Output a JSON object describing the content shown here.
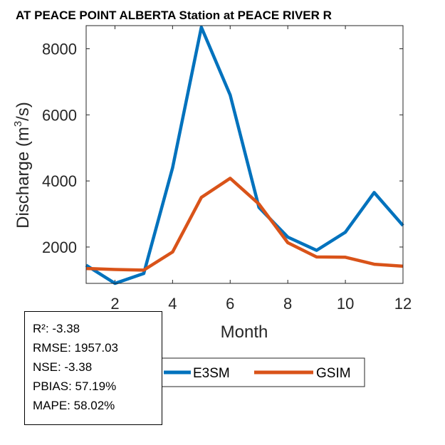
{
  "chart_data": {
    "type": "line",
    "title": "AT PEACE POINT ALBERTA  Station at  PEACE RIVER  R",
    "xlabel": "Month",
    "ylabel_prefix": "Discharge (m",
    "ylabel_sup": "3",
    "ylabel_suffix": "/s)",
    "xlim": [
      1,
      12
    ],
    "ylim": [
      900,
      8700
    ],
    "x": [
      1,
      2,
      3,
      4,
      5,
      6,
      7,
      8,
      9,
      10,
      11,
      12
    ],
    "xticks": [
      2,
      4,
      6,
      8,
      10,
      12
    ],
    "xtick_labels": [
      "2",
      "4",
      "6",
      "8",
      "10",
      "12"
    ],
    "yticks": [
      2000,
      4000,
      6000,
      8000
    ],
    "ytick_labels": [
      "2000",
      "4000",
      "6000",
      "8000"
    ],
    "series": [
      {
        "name": "E3SM",
        "color": "#0072BD",
        "values": [
          1450,
          900,
          1200,
          4400,
          8650,
          6600,
          3200,
          2300,
          1900,
          2450,
          3650,
          2650
        ]
      },
      {
        "name": "GSIM",
        "color": "#D95319",
        "values": [
          1350,
          1320,
          1300,
          1850,
          3500,
          4080,
          3300,
          2130,
          1700,
          1690,
          1480,
          1420
        ]
      }
    ],
    "legend_position": "bottom-center"
  },
  "stats": [
    "R²: -3.38",
    "RMSE: 1957.03",
    "NSE: -3.38",
    "PBIAS: 57.19%",
    "MAPE: 58.02%"
  ]
}
